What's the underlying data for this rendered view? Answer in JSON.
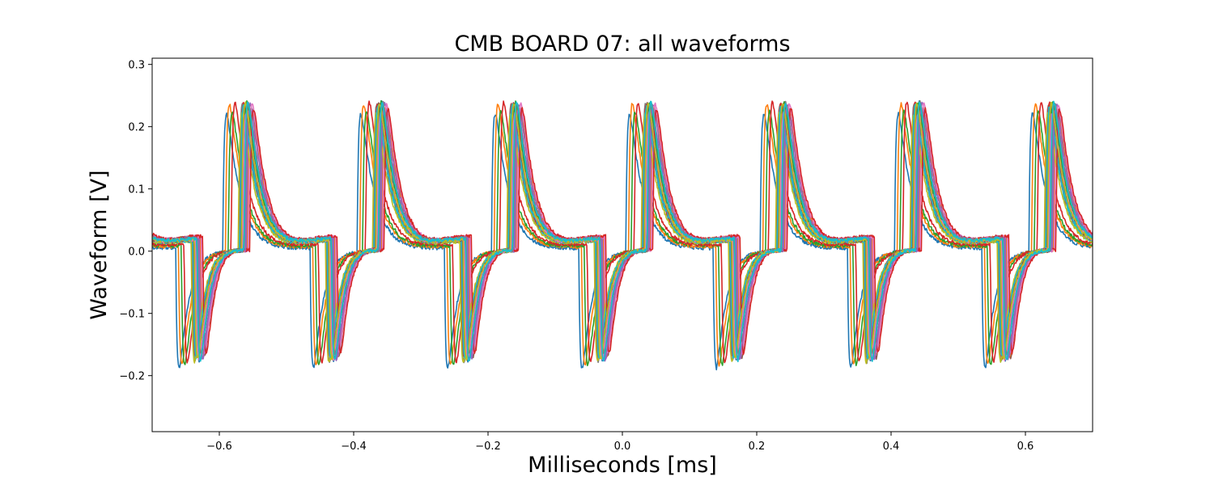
{
  "chart_data": {
    "type": "line",
    "title": "CMB BOARD 07: all waveforms",
    "xlabel": "Milliseconds [ms]",
    "ylabel": "Waveform [V]",
    "xlim": [
      -0.7,
      0.7
    ],
    "ylim": [
      -0.29,
      0.31
    ],
    "xticks": [
      -0.6,
      -0.4,
      -0.2,
      0.0,
      0.2,
      0.4,
      0.6
    ],
    "xtick_labels": [
      "−0.6",
      "−0.4",
      "−0.2",
      "0.0",
      "0.2",
      "0.4",
      "0.6"
    ],
    "yticks": [
      -0.2,
      -0.1,
      0.0,
      0.1,
      0.2,
      0.3
    ],
    "ytick_labels": [
      "−0.2",
      "−0.1",
      "0.0",
      "0.1",
      "0.2",
      "0.3"
    ],
    "grid": false,
    "legend": "none",
    "signal": {
      "period_ms": 0.2,
      "positive_peak_v": 0.28,
      "negative_peak_v": -0.25,
      "baseline_v": 0.0,
      "first_positive_edge_ms": -0.595,
      "first_negative_edge_ms": -0.665,
      "trace_spread_ms": 0.042
    },
    "series_count": 30,
    "colors": [
      "#1f77b4",
      "#ff7f0e",
      "#2ca02c",
      "#d62728",
      "#9467bd",
      "#8c564b",
      "#e377c2",
      "#7f7f7f",
      "#bcbd22",
      "#17becf"
    ]
  }
}
